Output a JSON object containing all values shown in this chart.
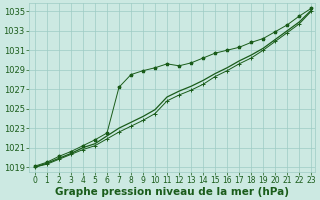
{
  "title": "",
  "xlabel": "Graphe pression niveau de la mer (hPa)",
  "ylabel": "",
  "xlim": [
    -0.5,
    23.3
  ],
  "ylim": [
    1018.5,
    1035.8
  ],
  "yticks": [
    1019,
    1021,
    1023,
    1025,
    1027,
    1029,
    1031,
    1033,
    1035
  ],
  "xticks": [
    0,
    1,
    2,
    3,
    4,
    5,
    6,
    7,
    8,
    9,
    10,
    11,
    12,
    13,
    14,
    15,
    16,
    17,
    18,
    19,
    20,
    21,
    22,
    23
  ],
  "background_color": "#cce9e2",
  "grid_color": "#9dccc4",
  "line_color": "#1a5c1a",
  "line1_x": [
    0,
    1,
    2,
    3,
    4,
    5,
    6,
    7,
    8,
    9,
    10,
    11,
    12,
    13,
    14,
    15,
    16,
    17,
    18,
    19,
    20,
    21,
    22,
    23
  ],
  "line1_y": [
    1019.1,
    1019.5,
    1020.1,
    1020.6,
    1021.2,
    1021.8,
    1022.5,
    1027.2,
    1028.5,
    1028.9,
    1029.2,
    1029.6,
    1029.4,
    1029.7,
    1030.2,
    1030.7,
    1031.0,
    1031.3,
    1031.8,
    1032.2,
    1032.9,
    1033.6,
    1034.5,
    1035.3
  ],
  "line2_x": [
    0,
    1,
    2,
    3,
    4,
    5,
    6,
    7,
    8,
    9,
    10,
    11,
    12,
    13,
    14,
    15,
    16,
    17,
    18,
    19,
    20,
    21,
    22,
    23
  ],
  "line2_y": [
    1019.0,
    1019.4,
    1019.9,
    1020.4,
    1021.0,
    1021.4,
    1022.2,
    1023.0,
    1023.6,
    1024.2,
    1024.9,
    1026.2,
    1026.8,
    1027.3,
    1027.9,
    1028.6,
    1029.2,
    1029.9,
    1030.5,
    1031.2,
    1032.1,
    1033.0,
    1033.9,
    1035.1
  ],
  "line3_x": [
    0,
    1,
    2,
    3,
    4,
    5,
    6,
    7,
    8,
    9,
    10,
    11,
    12,
    13,
    14,
    15,
    16,
    17,
    18,
    19,
    20,
    21,
    22,
    23
  ],
  "line3_y": [
    1019.0,
    1019.3,
    1019.8,
    1020.3,
    1020.8,
    1021.2,
    1021.9,
    1022.6,
    1023.2,
    1023.8,
    1024.5,
    1025.8,
    1026.4,
    1026.9,
    1027.5,
    1028.3,
    1028.9,
    1029.6,
    1030.2,
    1031.0,
    1031.9,
    1032.8,
    1033.7,
    1035.0
  ],
  "fig_bg": "#cce9e2",
  "font_color": "#1a5c1a",
  "tick_fontsize": 5.5,
  "xlabel_fontsize": 7.5
}
